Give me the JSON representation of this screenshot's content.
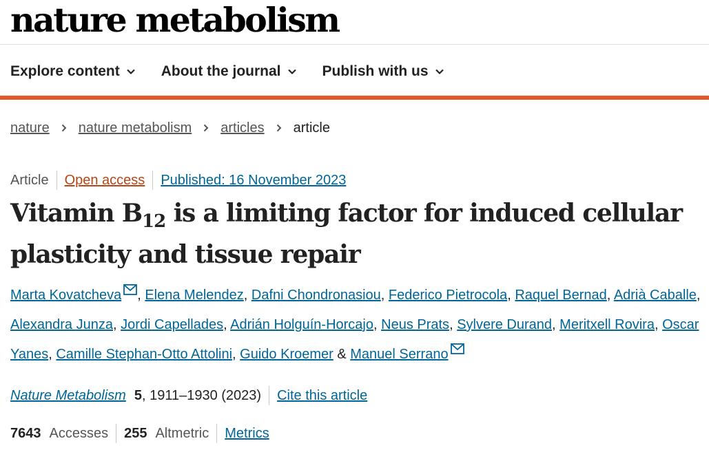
{
  "journal_logo": "nature metabolism",
  "nav": [
    {
      "label": "Explore content"
    },
    {
      "label": "About the journal"
    },
    {
      "label": "Publish with us"
    }
  ],
  "breadcrumb": [
    {
      "label": "nature"
    },
    {
      "label": "nature metabolism"
    },
    {
      "label": "articles"
    },
    {
      "label": "article"
    }
  ],
  "article": {
    "type": "Article",
    "open_access": "Open access",
    "published": "Published: 16 November 2023",
    "title_part1": "Vitamin B",
    "title_sub": "12",
    "title_part2": " is a limiting factor for induced cellular plasticity and tissue repair",
    "authors": [
      "Marta Kovatcheva",
      "Elena Melendez",
      "Dafni Chondronasiou",
      "Federico Pietrocola",
      "Raquel Bernad",
      "Adrià Caballe",
      "Alexandra Junza",
      "Jordi Capellades",
      "Adrián Holguín-Horcajo",
      "Neus Prats",
      "Sylvere Durand",
      "Meritxell Rovira",
      "Oscar Yanes",
      "Camille Stephan-Otto Attolini",
      "Guido Kroemer",
      "Manuel Serrano"
    ],
    "author_joiner": "&",
    "journal_name": "Nature Metabolism",
    "volume": "5",
    "pages_year": ", 1911–1930 (2023)",
    "cite_label": "Cite this article",
    "accesses_count": "7643",
    "accesses_label": "Accesses",
    "altmetric_count": "255",
    "altmetric_label": "Altmetric",
    "metrics_label": "Metrics"
  },
  "colors": {
    "accent": "#e05a2b",
    "link": "#006699",
    "open_access": "#b74616"
  },
  "icons": {
    "nav_chevron": "chevron-down-icon",
    "breadcrumb_separator": "chevron-right-icon",
    "corresponding_author": "envelope-icon"
  }
}
